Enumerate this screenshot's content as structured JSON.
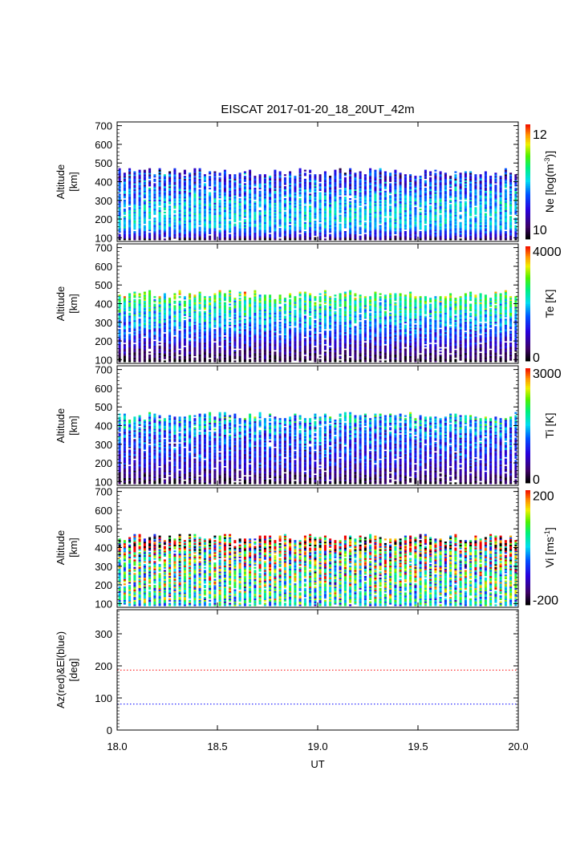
{
  "chart_data": {
    "title": "EISCAT 2017-01-20_18_20UT_42m",
    "xlabel": "UT",
    "xlim": [
      18.0,
      20.0
    ],
    "xticks": [
      "18.0",
      "18.5",
      "19.0",
      "19.5",
      "20.0"
    ],
    "panels": [
      {
        "type": "heatmap",
        "ylabel": [
          "Altitude",
          "[km]"
        ],
        "ylim": [
          80,
          720
        ],
        "yticks": [
          "100",
          "200",
          "300",
          "400",
          "500",
          "600",
          "700"
        ],
        "colorbar": {
          "label": "Ne [log(m",
          "label_sup": "-3",
          "label_end": ")]",
          "min": 9.8,
          "max": 12.2,
          "ticks": [
            "10",
            "12"
          ],
          "tick_values": [
            10,
            12
          ]
        },
        "profile": {
          "altitude": [
            90,
            100,
            150,
            200,
            300,
            400,
            470
          ],
          "value": [
            9.9,
            10.3,
            10.9,
            11.0,
            10.85,
            10.55,
            10.4
          ]
        },
        "noise": 0.35
      },
      {
        "type": "heatmap",
        "ylabel": [
          "Altitude",
          "[km]"
        ],
        "ylim": [
          80,
          720
        ],
        "yticks": [
          "100",
          "200",
          "300",
          "400",
          "500",
          "600",
          "700"
        ],
        "colorbar": {
          "label": "Te [K]",
          "min": 0,
          "max": 4000,
          "ticks": [
            "0",
            "4000"
          ],
          "tick_values": [
            0,
            4000
          ]
        },
        "profile": {
          "altitude": [
            90,
            100,
            150,
            200,
            300,
            400,
            470
          ],
          "value": [
            100,
            250,
            600,
            1100,
            1800,
            2400,
            2900
          ]
        },
        "noise": 600
      },
      {
        "type": "heatmap",
        "ylabel": [
          "Altitude",
          "[km]"
        ],
        "ylim": [
          80,
          720
        ],
        "yticks": [
          "100",
          "200",
          "300",
          "400",
          "500",
          "600",
          "700"
        ],
        "colorbar": {
          "label": "Ti [K]",
          "min": 0,
          "max": 3000,
          "ticks": [
            "0",
            "3000"
          ],
          "tick_values": [
            0,
            3000
          ]
        },
        "profile": {
          "altitude": [
            90,
            100,
            150,
            200,
            300,
            400,
            470
          ],
          "value": [
            100,
            250,
            500,
            750,
            1000,
            1300,
            1600
          ]
        },
        "noise": 500
      },
      {
        "type": "heatmap",
        "ylabel": [
          "Altitude",
          "[km]"
        ],
        "ylim": [
          80,
          720
        ],
        "yticks": [
          "100",
          "200",
          "300",
          "400",
          "500",
          "600",
          "700"
        ],
        "colorbar": {
          "label": "Vi [ms",
          "label_sup": "-1",
          "label_end": "]",
          "min": -220,
          "max": 220,
          "ticks": [
            "200",
            "-200"
          ],
          "tick_values": [
            200,
            -200
          ]
        },
        "profile": {
          "altitude": [
            90,
            100,
            150,
            200,
            300,
            400,
            470
          ],
          "value": [
            0,
            20,
            40,
            50,
            60,
            80,
            100
          ]
        },
        "noise": 150
      },
      {
        "type": "line",
        "ylabel": [
          "Az(red)&El(blue)",
          "[deg]"
        ],
        "ylim": [
          0,
          375
        ],
        "yticks": [
          "0",
          "100",
          "200",
          "300"
        ],
        "series": [
          {
            "name": "Az",
            "color": "#ff0000",
            "x": [
              18.0,
              20.0
            ],
            "y": [
              187,
              187
            ]
          },
          {
            "name": "El",
            "color": "#0000ff",
            "x": [
              18.0,
              20.0
            ],
            "y": [
              81,
              81
            ]
          }
        ]
      }
    ],
    "time_columns": 80,
    "data_altitude_range": [
      88,
      470
    ]
  }
}
